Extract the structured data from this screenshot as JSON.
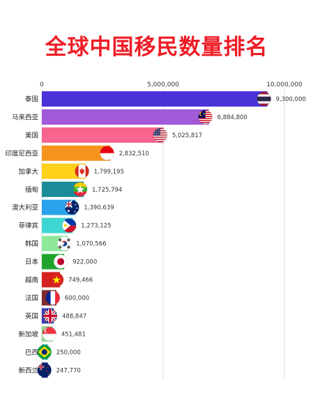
{
  "title": "全球中国移民数量排名",
  "chart_data": {
    "type": "bar",
    "orientation": "horizontal",
    "title": "全球中国移民数量排名",
    "xlim": [
      0,
      10000000
    ],
    "x_ticks": [
      0,
      5000000,
      10000000
    ],
    "x_tick_labels": [
      "0",
      "5,000,000",
      "10,000,000"
    ],
    "grid": true,
    "categories": [
      "泰国",
      "马来西亚",
      "美国",
      "印度尼西亚",
      "加拿大",
      "缅甸",
      "澳大利亚",
      "菲律宾",
      "韩国",
      "日本",
      "越南",
      "法国",
      "英国",
      "新加坡",
      "巴西",
      "新西兰"
    ],
    "values": [
      9300000,
      6884800,
      5025817,
      2832510,
      1799195,
      1725794,
      1390639,
      1273125,
      1070566,
      922000,
      749466,
      600000,
      488847,
      451481,
      250000,
      247770
    ],
    "value_labels": [
      "9,300,000",
      "6,884,800",
      "5,025,817",
      "2,832,510",
      "1,799,195",
      "1,725,794",
      "1,390,639",
      "1,273,125",
      "1,070,566",
      "922,000",
      "749,466",
      "600,000",
      "488,847",
      "451,481",
      "250,000",
      "247,770"
    ],
    "colors": [
      "#4a33d8",
      "#a25ad8",
      "#f7648e",
      "#f7941d",
      "#ffd11a",
      "#1a8c99",
      "#29a3ec",
      "#3fd6d1",
      "#8ee89a",
      "#1fa32b",
      "#d62020",
      "#7e2a2e",
      "#3a3ab4",
      "#8fd68c",
      "#2bb0a4",
      "#2a2a85"
    ],
    "flags": [
      "thailand-flag",
      "malaysia-flag",
      "usa-flag",
      "indonesia-flag",
      "canada-flag",
      "myanmar-flag",
      "australia-flag",
      "philippines-flag",
      "korea-flag",
      "japan-flag",
      "vietnam-flag",
      "france-flag",
      "uk-flag",
      "singapore-flag",
      "brazil-flag",
      "newzealand-flag"
    ]
  }
}
